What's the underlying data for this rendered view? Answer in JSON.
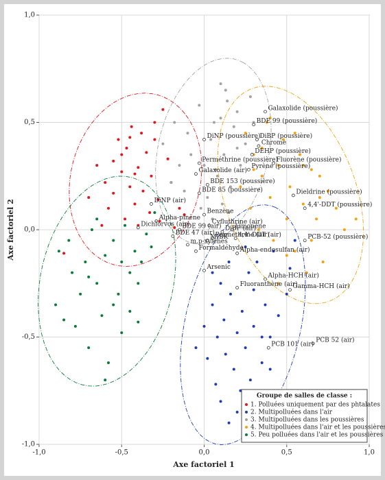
{
  "chart_data": {
    "type": "scatter",
    "x_label": "Axe factoriel 1",
    "y_label": "Axe factoriel 2",
    "xlim": [
      -1.0,
      1.0
    ],
    "ylim": [
      -1.0,
      1.0
    ],
    "xticks": [
      {
        "value": -1,
        "label": "-1,0"
      },
      {
        "value": -0.5,
        "label": "-0,5"
      },
      {
        "value": 0,
        "label": "0,0"
      },
      {
        "value": 0.5,
        "label": "0,5"
      },
      {
        "value": 1,
        "label": "1,0"
      }
    ],
    "yticks": [
      {
        "value": -1,
        "label": "-1,0"
      },
      {
        "value": -0.5,
        "label": "-0,5"
      },
      {
        "value": 0,
        "label": "0,0"
      },
      {
        "value": 0.5,
        "label": "0,5"
      },
      {
        "value": 1,
        "label": "1,0"
      }
    ],
    "grid": true,
    "legend_title": "Groupe de salles de classe :",
    "legend_position": "lower right",
    "series": [
      {
        "name": "1. Polluées uniquement par des phtalates",
        "color": "#e0161c",
        "x": [
          -0.7,
          -0.65,
          -0.6,
          -0.58,
          -0.55,
          -0.52,
          -0.5,
          -0.48,
          -0.47,
          -0.45,
          -0.44,
          -0.42,
          -0.4,
          -0.4,
          -0.38,
          -0.37,
          -0.35,
          -0.33,
          -0.32,
          -0.3,
          -0.28,
          -0.27,
          -0.25,
          -0.22,
          -0.2,
          -0.18,
          -0.15,
          -0.12,
          -0.42,
          -0.55,
          -0.5,
          -0.45,
          -0.3,
          -0.85,
          -0.62
        ],
        "values": [
          0.15,
          0.3,
          0.22,
          0.1,
          0.32,
          0.42,
          0.27,
          0.05,
          0.38,
          0.2,
          0.48,
          0.12,
          0.29,
          0.02,
          0.45,
          0.18,
          0.36,
          0.08,
          0.25,
          0.5,
          0.14,
          0.04,
          0.56,
          0.33,
          0.22,
          0.01,
          0.1,
          0.07,
          0.26,
          0.17,
          0.35,
          0.43,
          0.42,
          -0.11,
          0.02
        ]
      },
      {
        "name": "2. Multipolluées dans l'air",
        "color": "#1f3cb4",
        "x": [
          0.0,
          0.02,
          0.05,
          0.07,
          0.08,
          0.1,
          0.12,
          0.13,
          0.15,
          0.16,
          0.18,
          0.2,
          0.22,
          0.23,
          0.25,
          0.27,
          0.28,
          0.3,
          0.32,
          0.35,
          0.37,
          0.4,
          0.42,
          0.45,
          0.5,
          0.52,
          0.55,
          0.1,
          0.05,
          0.15,
          0.2,
          0.3,
          0.4,
          -0.05,
          0.25,
          0.35
        ],
        "values": [
          -0.45,
          -0.6,
          -0.35,
          -0.72,
          -0.5,
          -0.8,
          -0.42,
          -0.58,
          -0.9,
          -0.3,
          -0.65,
          -0.48,
          -0.75,
          -0.38,
          -0.55,
          -0.2,
          -0.7,
          -0.45,
          -0.15,
          -0.62,
          -0.35,
          -0.5,
          -0.1,
          -0.4,
          -0.3,
          -0.18,
          -0.05,
          -0.25,
          -0.2,
          -0.15,
          -0.85,
          -0.28,
          -0.65,
          -0.55,
          -0.08,
          -0.5
        ]
      },
      {
        "name": "3. Multipolluées dans les poussières",
        "color": "#a3a3a3",
        "x": [
          -0.25,
          -0.2,
          -0.18,
          -0.15,
          -0.12,
          -0.1,
          -0.08,
          -0.05,
          -0.03,
          0.0,
          0.02,
          0.04,
          0.06,
          0.08,
          0.1,
          0.12,
          0.14,
          0.16,
          0.18,
          0.2,
          0.22,
          0.25,
          0.28,
          0.3,
          0.11,
          0.15,
          0.05,
          -0.02,
          0.1,
          0.2,
          0.07,
          0.13
        ],
        "values": [
          0.4,
          0.22,
          0.5,
          0.3,
          0.18,
          0.45,
          0.35,
          0.26,
          0.58,
          0.3,
          0.15,
          0.42,
          0.5,
          0.25,
          0.68,
          0.35,
          0.6,
          0.2,
          0.48,
          0.55,
          0.3,
          0.4,
          0.62,
          0.5,
          0.12,
          0.08,
          0.05,
          0.1,
          0.52,
          0.38,
          0.28,
          0.65
        ]
      },
      {
        "name": "4. Multipolluées dans l'air et les poussières",
        "color": "#f4a111",
        "x": [
          0.22,
          0.25,
          0.28,
          0.3,
          0.33,
          0.35,
          0.38,
          0.4,
          0.42,
          0.45,
          0.48,
          0.5,
          0.52,
          0.55,
          0.58,
          0.6,
          0.62,
          0.65,
          0.68,
          0.7,
          0.72,
          0.75,
          0.8,
          0.85,
          0.92,
          0.45,
          0.55,
          0.35,
          0.5,
          0.6,
          0.4,
          0.65,
          0.3,
          0.7
        ],
        "values": [
          0.2,
          0.45,
          0.1,
          0.35,
          0.0,
          0.25,
          0.5,
          0.15,
          -0.05,
          0.3,
          0.42,
          0.05,
          0.2,
          -0.1,
          0.35,
          0.12,
          -0.2,
          0.28,
          0.05,
          0.25,
          -0.15,
          0.18,
          0.1,
          0.0,
          0.05,
          -0.25,
          0.45,
          0.38,
          -0.12,
          0.3,
          0.52,
          -0.05,
          0.28,
          0.15
        ]
      },
      {
        "name": "5. Peu polluées dans l'air et les poussières",
        "color": "#0b7a3b",
        "x": [
          -0.9,
          -0.88,
          -0.85,
          -0.82,
          -0.8,
          -0.78,
          -0.75,
          -0.72,
          -0.7,
          -0.68,
          -0.65,
          -0.62,
          -0.6,
          -0.58,
          -0.55,
          -0.52,
          -0.5,
          -0.48,
          -0.45,
          -0.42,
          -0.4,
          -0.38,
          -0.35,
          -0.32,
          -0.3,
          -0.6,
          -0.55,
          -0.7,
          -0.5,
          -0.45,
          -0.65,
          -0.4
        ],
        "values": [
          -0.35,
          -0.1,
          -0.42,
          -0.05,
          -0.2,
          -0.45,
          -0.3,
          -0.15,
          -0.55,
          0.0,
          -0.25,
          -0.4,
          -0.12,
          -0.62,
          -0.05,
          -0.3,
          -0.48,
          0.02,
          -0.2,
          -0.1,
          -0.43,
          -0.15,
          -0.02,
          -0.08,
          0.08,
          -0.7,
          -0.35,
          -0.22,
          -0.15,
          -0.38,
          0.05,
          -0.25
        ]
      }
    ],
    "annotations": [
      {
        "text": "Galaxolide (poussière)",
        "x": 0.37,
        "y": 0.55
      },
      {
        "text": "BDE 99 (poussière)",
        "x": 0.3,
        "y": 0.49
      },
      {
        "text": "DiBP (poussière)",
        "x": 0.32,
        "y": 0.42
      },
      {
        "text": "Chrome",
        "x": 0.33,
        "y": 0.39
      },
      {
        "text": "DiNP (poussière)",
        "x": 0.0,
        "y": 0.42
      },
      {
        "text": "DEHP (poussière)",
        "x": 0.29,
        "y": 0.35
      },
      {
        "text": "Perméthrine (poussière)",
        "x": -0.03,
        "y": 0.31
      },
      {
        "text": "Fluorène (poussière)",
        "x": 0.42,
        "y": 0.31
      },
      {
        "text": "Pyrène (poussière)",
        "x": 0.27,
        "y": 0.28
      },
      {
        "text": "Galaxolide (air)",
        "x": -0.05,
        "y": 0.26
      },
      {
        "text": "BDE 153 (poussière)",
        "x": 0.02,
        "y": 0.21
      },
      {
        "text": "Dieldrine (poussière)",
        "x": 0.54,
        "y": 0.16
      },
      {
        "text": "BDE 85 (poussière)",
        "x": -0.03,
        "y": 0.17
      },
      {
        "text": "4,4'-DDT (poussière)",
        "x": 0.61,
        "y": 0.1
      },
      {
        "text": "DiNP (air)",
        "x": -0.32,
        "y": 0.12
      },
      {
        "text": "Benzène",
        "x": 0.0,
        "y": 0.07
      },
      {
        "text": "Alpha-pinène",
        "x": -0.29,
        "y": 0.04
      },
      {
        "text": "Limonène",
        "x": 0.17,
        "y": 0.0
      },
      {
        "text": "Cyfluthrine (air)",
        "x": 0.03,
        "y": 0.02
      },
      {
        "text": "Dichlorvos (air)",
        "x": -0.4,
        "y": 0.01
      },
      {
        "text": "BDE 99 (air)",
        "x": -0.15,
        "y": -0.0
      },
      {
        "text": "DiBP (air)",
        "x": 0.11,
        "y": -0.01
      },
      {
        "text": "4,4'-DDT (air)",
        "x": 0.19,
        "y": -0.04
      },
      {
        "text": "BDE 47 (air)",
        "x": -0.19,
        "y": -0.03
      },
      {
        "text": "Perméthrine (air)",
        "x": 0.05,
        "y": -0.04
      },
      {
        "text": "PCB-52 (poussière)",
        "x": 0.61,
        "y": -0.05
      },
      {
        "text": "MIBK",
        "x": 0.02,
        "y": -0.05
      },
      {
        "text": "m,p-xylènes",
        "x": -0.1,
        "y": -0.07
      },
      {
        "text": "Formaldéhyde",
        "x": -0.05,
        "y": -0.1
      },
      {
        "text": "Alpha-endosulfan (air)",
        "x": 0.2,
        "y": -0.11
      },
      {
        "text": "Arsenic",
        "x": 0.0,
        "y": -0.19
      },
      {
        "text": "Alpha-HCH (air)",
        "x": 0.37,
        "y": -0.23
      },
      {
        "text": "Fluoranthène (air)",
        "x": 0.2,
        "y": -0.27
      },
      {
        "text": "Gamma-HCH (air)",
        "x": 0.52,
        "y": -0.28
      },
      {
        "text": "PCB 52 (air)",
        "x": 0.66,
        "y": -0.53
      },
      {
        "text": "PCB 101 (air)",
        "x": 0.39,
        "y": -0.55
      }
    ]
  }
}
